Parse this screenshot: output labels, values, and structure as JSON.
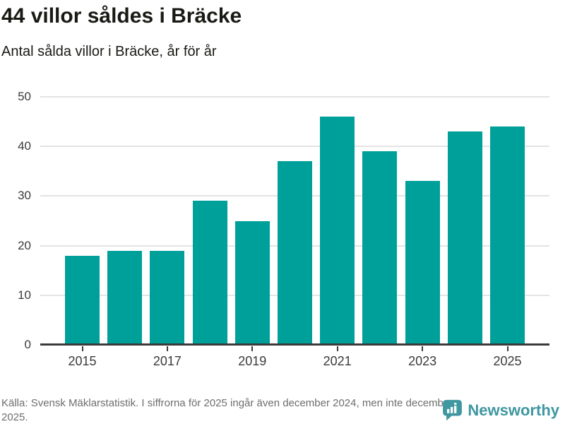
{
  "header": {
    "title": "44 villor såldes i Bräcke",
    "subtitle": "Antal sålda villor i Bräcke, år för år"
  },
  "chart_data": {
    "type": "bar",
    "categories": [
      "2015",
      "2016",
      "2017",
      "2018",
      "2019",
      "2020",
      "2021",
      "2022",
      "2023",
      "2024",
      "2025"
    ],
    "values": [
      18,
      19,
      19,
      29,
      25,
      37,
      46,
      39,
      33,
      43,
      44
    ],
    "title": "44 villor såldes i Bräcke",
    "subtitle": "Antal sålda villor i Bräcke, år för år",
    "xlabel": "",
    "ylabel": "",
    "ylim": [
      0,
      50
    ],
    "y_ticks": [
      0,
      10,
      20,
      30,
      40,
      50
    ],
    "x_tick_labels": [
      "2015",
      "2017",
      "2019",
      "2021",
      "2023",
      "2025"
    ],
    "grid": "horizontal",
    "legend": "none",
    "bar_color": "#00a09a"
  },
  "colors": {
    "bar": "#00a09a",
    "grid": "#e4e4e4",
    "axis": "#3a3a3a",
    "title_text": "#1a1a14",
    "muted_text": "#6e6e6e",
    "brand_teal": "#3f97a0"
  },
  "footer": {
    "source_text": "Källa: Svensk Mäklarstatistik. I siffrorna för 2025 ingår även december 2024, men inte december 2025.",
    "logo_text": "Newsworthy"
  }
}
